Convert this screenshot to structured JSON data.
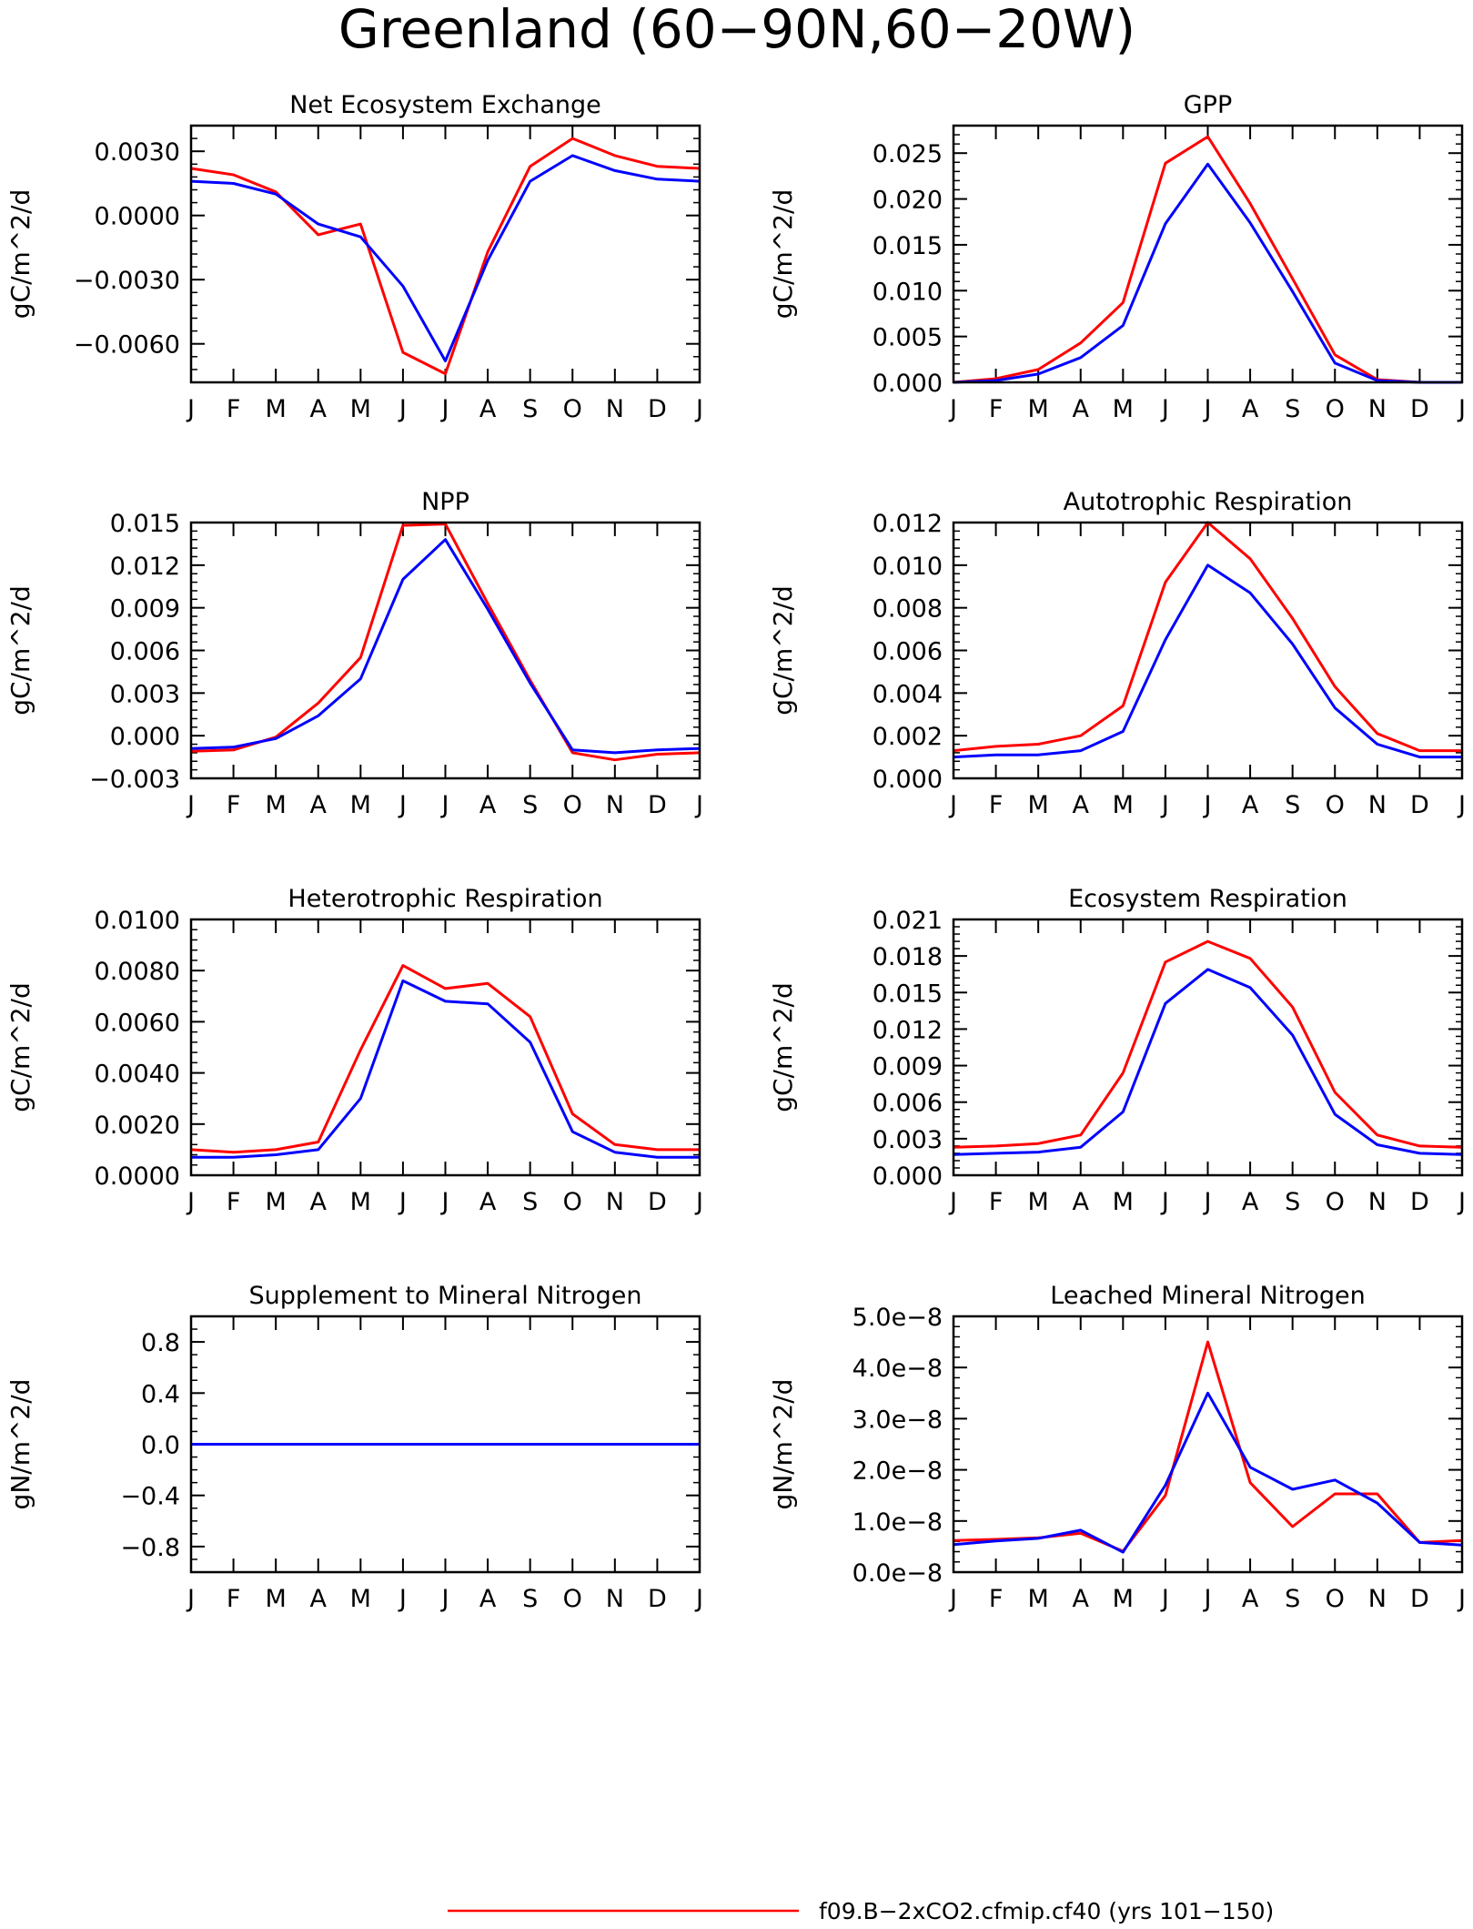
{
  "figure": {
    "title": "Greenland (60−90N,60−20W)",
    "months": [
      "J",
      "F",
      "M",
      "A",
      "M",
      "J",
      "J",
      "A",
      "S",
      "O",
      "N",
      "D",
      "J"
    ],
    "series_colors": {
      "red": "#ff0000",
      "blue": "#0000ff"
    }
  },
  "legend": {
    "entries": [
      {
        "label": "f09.B−2xCO2.cfmip.cf40 (yrs 101−150)",
        "color": "#ff0000"
      }
    ]
  },
  "chart_data": [
    {
      "type": "line",
      "title": "Net Ecosystem Exchange",
      "ylabel": "gC/m^2/d",
      "ylim": [
        -0.0078,
        0.0042
      ],
      "yticks": [
        -0.006,
        -0.003,
        0.0,
        0.003
      ],
      "ytick_labels": [
        "−0.0060",
        "−0.0030",
        "0.0000",
        "0.0030"
      ],
      "minor_step": 0.0006,
      "x": [
        "J",
        "F",
        "M",
        "A",
        "M",
        "J",
        "J",
        "A",
        "S",
        "O",
        "N",
        "D",
        "J"
      ],
      "series": [
        {
          "color": "#ff0000",
          "values": [
            0.0022,
            0.0019,
            0.0011,
            -0.0009,
            -0.0004,
            -0.0064,
            -0.0074,
            -0.0017,
            0.0023,
            0.0036,
            0.0028,
            0.0023,
            0.0022
          ]
        },
        {
          "color": "#0000ff",
          "values": [
            0.0016,
            0.0015,
            0.001,
            -0.0004,
            -0.001,
            -0.0033,
            -0.0068,
            -0.0021,
            0.0016,
            0.0028,
            0.0021,
            0.0017,
            0.0016
          ]
        }
      ]
    },
    {
      "type": "line",
      "title": "GPP",
      "ylabel": "gC/m^2/d",
      "ylim": [
        0.0,
        0.028
      ],
      "yticks": [
        0.0,
        0.005,
        0.01,
        0.015,
        0.02,
        0.025
      ],
      "ytick_labels": [
        "0.000",
        "0.005",
        "0.010",
        "0.015",
        "0.020",
        "0.025"
      ],
      "minor_step": 0.001,
      "x": [
        "J",
        "F",
        "M",
        "A",
        "M",
        "J",
        "J",
        "A",
        "S",
        "O",
        "N",
        "D",
        "J"
      ],
      "series": [
        {
          "color": "#ff0000",
          "values": [
            0.0,
            0.0004,
            0.0014,
            0.0043,
            0.0087,
            0.0239,
            0.0268,
            0.0195,
            0.0113,
            0.003,
            0.0003,
            0.0,
            0.0
          ]
        },
        {
          "color": "#0000ff",
          "values": [
            0.0,
            0.0002,
            0.0009,
            0.0027,
            0.0062,
            0.0173,
            0.0238,
            0.0174,
            0.0099,
            0.0021,
            0.0002,
            0.0,
            0.0
          ]
        }
      ]
    },
    {
      "type": "line",
      "title": "NPP",
      "ylabel": "gC/m^2/d",
      "ylim": [
        -0.003,
        0.015
      ],
      "yticks": [
        -0.003,
        0.0,
        0.003,
        0.006,
        0.009,
        0.012,
        0.015
      ],
      "ytick_labels": [
        "−0.003",
        "0.000",
        "0.003",
        "0.006",
        "0.009",
        "0.012",
        "0.015"
      ],
      "minor_step": 0.0006,
      "x": [
        "J",
        "F",
        "M",
        "A",
        "M",
        "J",
        "J",
        "A",
        "S",
        "O",
        "N",
        "D",
        "J"
      ],
      "series": [
        {
          "color": "#ff0000",
          "values": [
            -0.0011,
            -0.001,
            -0.0001,
            0.0023,
            0.0055,
            0.0148,
            0.0149,
            0.0093,
            0.0039,
            -0.0012,
            -0.0017,
            -0.0013,
            -0.0012
          ]
        },
        {
          "color": "#0000ff",
          "values": [
            -0.0009,
            -0.0008,
            -0.0002,
            0.0014,
            0.004,
            0.011,
            0.0138,
            0.0089,
            0.0037,
            -0.001,
            -0.0012,
            -0.001,
            -0.0009
          ]
        }
      ]
    },
    {
      "type": "line",
      "title": "Autotrophic Respiration",
      "ylabel": "gC/m^2/d",
      "ylim": [
        0.0,
        0.012
      ],
      "yticks": [
        0.0,
        0.002,
        0.004,
        0.006,
        0.008,
        0.01,
        0.012
      ],
      "ytick_labels": [
        "0.000",
        "0.002",
        "0.004",
        "0.006",
        "0.008",
        "0.010",
        "0.012"
      ],
      "minor_step": 0.0004,
      "x": [
        "J",
        "F",
        "M",
        "A",
        "M",
        "J",
        "J",
        "A",
        "S",
        "O",
        "N",
        "D",
        "J"
      ],
      "series": [
        {
          "color": "#ff0000",
          "values": [
            0.0013,
            0.0015,
            0.0016,
            0.002,
            0.0034,
            0.0092,
            0.012,
            0.0103,
            0.0075,
            0.0043,
            0.0021,
            0.0013,
            0.0013
          ]
        },
        {
          "color": "#0000ff",
          "values": [
            0.001,
            0.0011,
            0.0011,
            0.0013,
            0.0022,
            0.0065,
            0.01,
            0.0087,
            0.0063,
            0.0033,
            0.0016,
            0.001,
            0.001
          ]
        }
      ]
    },
    {
      "type": "line",
      "title": "Heterotrophic Respiration",
      "ylabel": "gC/m^2/d",
      "ylim": [
        0.0,
        0.01
      ],
      "yticks": [
        0.0,
        0.002,
        0.004,
        0.006,
        0.008,
        0.01
      ],
      "ytick_labels": [
        "0.0000",
        "0.0020",
        "0.0040",
        "0.0060",
        "0.0080",
        "0.0100"
      ],
      "minor_step": 0.0004,
      "x": [
        "J",
        "F",
        "M",
        "A",
        "M",
        "J",
        "J",
        "A",
        "S",
        "O",
        "N",
        "D",
        "J"
      ],
      "series": [
        {
          "color": "#ff0000",
          "values": [
            0.001,
            0.0009,
            0.001,
            0.0013,
            0.0049,
            0.0082,
            0.0073,
            0.0075,
            0.0062,
            0.0024,
            0.0012,
            0.001,
            0.001
          ]
        },
        {
          "color": "#0000ff",
          "values": [
            0.0007,
            0.0007,
            0.0008,
            0.001,
            0.003,
            0.0076,
            0.0068,
            0.0067,
            0.0052,
            0.0017,
            0.0009,
            0.0007,
            0.0007
          ]
        }
      ]
    },
    {
      "type": "line",
      "title": "Ecosystem Respiration",
      "ylabel": "gC/m^2/d",
      "ylim": [
        0.0,
        0.021
      ],
      "yticks": [
        0.0,
        0.003,
        0.006,
        0.009,
        0.012,
        0.015,
        0.018,
        0.021
      ],
      "ytick_labels": [
        "0.000",
        "0.003",
        "0.006",
        "0.009",
        "0.012",
        "0.015",
        "0.018",
        "0.021"
      ],
      "minor_step": 0.0006,
      "x": [
        "J",
        "F",
        "M",
        "A",
        "M",
        "J",
        "J",
        "A",
        "S",
        "O",
        "N",
        "D",
        "J"
      ],
      "series": [
        {
          "color": "#ff0000",
          "values": [
            0.0023,
            0.0024,
            0.0026,
            0.0033,
            0.0084,
            0.0175,
            0.0192,
            0.0178,
            0.0138,
            0.0068,
            0.0033,
            0.0024,
            0.0023
          ]
        },
        {
          "color": "#0000ff",
          "values": [
            0.0017,
            0.0018,
            0.0019,
            0.0023,
            0.0052,
            0.0141,
            0.0169,
            0.0154,
            0.0115,
            0.005,
            0.0025,
            0.0018,
            0.0017
          ]
        }
      ]
    },
    {
      "type": "line",
      "title": "Supplement to Mineral Nitrogen",
      "ylabel": "gN/m^2/d",
      "ylim": [
        -1.0,
        1.0
      ],
      "yticks": [
        -0.8,
        -0.4,
        0.0,
        0.4,
        0.8
      ],
      "ytick_labels": [
        "−0.8",
        "−0.4",
        "0.0",
        "0.4",
        "0.8"
      ],
      "minor_step": 0.1,
      "x": [
        "J",
        "F",
        "M",
        "A",
        "M",
        "J",
        "J",
        "A",
        "S",
        "O",
        "N",
        "D",
        "J"
      ],
      "series": [
        {
          "color": "#ff0000",
          "values": [
            0,
            0,
            0,
            0,
            0,
            0,
            0,
            0,
            0,
            0,
            0,
            0,
            0
          ]
        },
        {
          "color": "#0000ff",
          "values": [
            0,
            0,
            0,
            0,
            0,
            0,
            0,
            0,
            0,
            0,
            0,
            0,
            0
          ]
        }
      ]
    },
    {
      "type": "line",
      "title": "Leached Mineral Nitrogen",
      "ylabel": "gN/m^2/d",
      "ylim": [
        0.0,
        5e-08
      ],
      "yticks": [
        0.0,
        1e-08,
        2e-08,
        3e-08,
        4e-08,
        5e-08
      ],
      "ytick_labels": [
        "0.0e−8",
        "1.0e−8",
        "2.0e−8",
        "3.0e−8",
        "4.0e−8",
        "5.0e−8"
      ],
      "minor_step": 2e-09,
      "x": [
        "J",
        "F",
        "M",
        "A",
        "M",
        "J",
        "J",
        "A",
        "S",
        "O",
        "N",
        "D",
        "J"
      ],
      "series": [
        {
          "color": "#ff0000",
          "values": [
            6.2e-09,
            6.4e-09,
            6.7e-09,
            7.6e-09,
            4.1e-09,
            1.5e-08,
            4.5e-08,
            1.75e-08,
            8.9e-09,
            1.53e-08,
            1.53e-08,
            5.8e-09,
            6.2e-09
          ]
        },
        {
          "color": "#0000ff",
          "values": [
            5.4e-09,
            6.1e-09,
            6.6e-09,
            8.2e-09,
            3.9e-09,
            1.7e-08,
            3.5e-08,
            2.05e-08,
            1.62e-08,
            1.8e-08,
            1.35e-08,
            5.8e-09,
            5.3e-09
          ]
        }
      ]
    }
  ]
}
